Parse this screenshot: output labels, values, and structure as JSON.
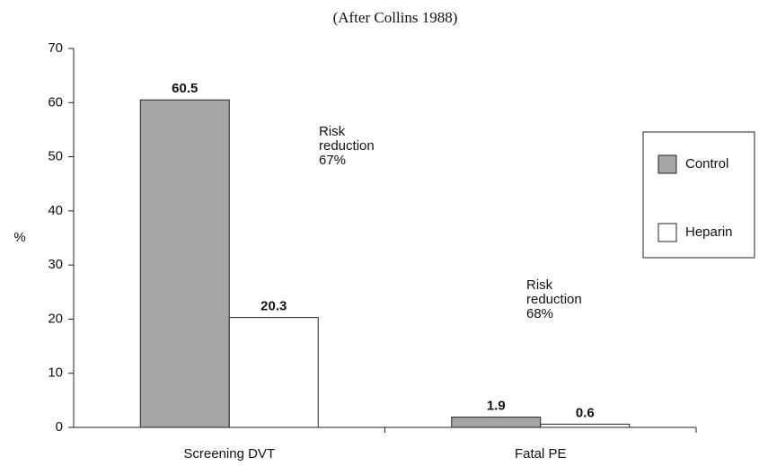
{
  "chart_data": {
    "type": "bar",
    "title": "(After Collins 1988)",
    "y_label": "%",
    "categories": [
      "Screening DVT",
      "Fatal PE"
    ],
    "series": [
      {
        "name": "Control",
        "color": "#a6a6a6",
        "values": [
          60.5,
          1.9
        ]
      },
      {
        "name": "Heparin",
        "color": "#ffffff",
        "values": [
          20.3,
          0.6
        ]
      }
    ],
    "ylim": [
      0,
      70
    ],
    "yticks": [
      0,
      10,
      20,
      30,
      40,
      50,
      60,
      70
    ],
    "annotations": [
      [
        "Risk",
        "reduction",
        "67%"
      ],
      [
        "Risk",
        "reduction",
        "68%"
      ]
    ],
    "legend": "right"
  }
}
